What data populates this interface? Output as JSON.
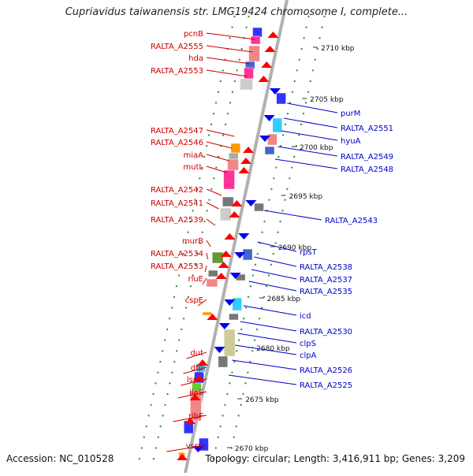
{
  "title": "Cupriavidus taiwanensis str. LMG19424 chromosome I, complete...",
  "accession": "Accession: NC_010528",
  "summary": "Topology: circular; Length: 3,416,911 bp; Genes: 3,209",
  "colors": {
    "axis": "#b0b0b0",
    "forward_label": "#cc0000",
    "reverse_label": "#0000cc",
    "dotted_track": "#2a8a2a",
    "ruler_text": "#111111"
  },
  "ruler": {
    "unit": "kbp",
    "ticks": [
      {
        "kbp": 2710,
        "label": "2710 kbp"
      },
      {
        "kbp": 2705,
        "label": "2705 kbp"
      },
      {
        "kbp": 2700,
        "label": "2700 kbp"
      },
      {
        "kbp": 2695,
        "label": "2695 kbp"
      },
      {
        "kbp": 2690,
        "label": "2690 kbp"
      },
      {
        "kbp": 2685,
        "label": "2685 kbp"
      },
      {
        "kbp": 2680,
        "label": "2680 kbp"
      },
      {
        "kbp": 2675,
        "label": "2675 kbp"
      },
      {
        "kbp": 2670,
        "label": "2670 kbp"
      }
    ]
  },
  "forward_labels": [
    "pcnB",
    "RALTA_A2555",
    "hda",
    "RALTA_A2553",
    "RALTA_A2547",
    "RALTA_A2546",
    "miaA",
    "mutL",
    "RALTA_A2542",
    "RALTA_A2541",
    "RALTA_A2539",
    "murB",
    "RALTA_A2534",
    "RALTA_A2533",
    "rluE",
    "cspE",
    "dut",
    "dfp",
    "lspA",
    "ileS",
    "ribF",
    "vsrC"
  ],
  "reverse_labels": [
    "purM",
    "RALTA_A2551",
    "hyuA",
    "RALTA_A2549",
    "RALTA_A2548",
    "RALTA_A2543",
    "rpsT",
    "RALTA_A2538",
    "RALTA_A2537",
    "RALTA_A2535",
    "icd",
    "RALTA_A2530",
    "clpS",
    "clpA",
    "RALTA_A2526",
    "RALTA_A2525"
  ]
}
